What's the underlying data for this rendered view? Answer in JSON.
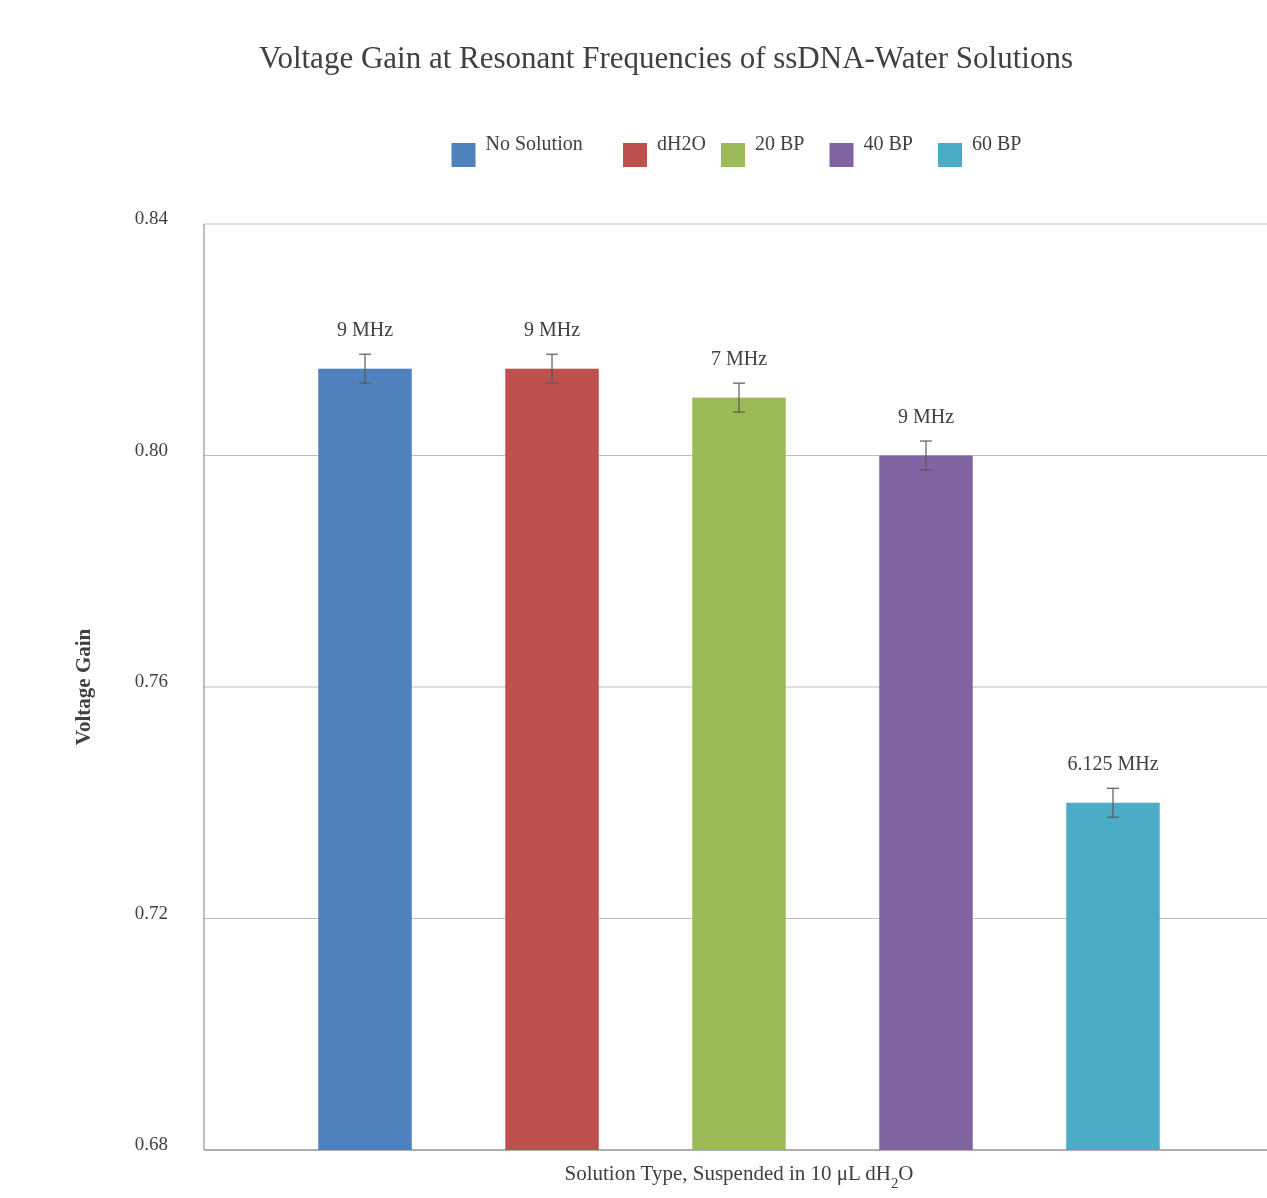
{
  "chart_data": {
    "type": "bar",
    "title": "Voltage Gain at Resonant Frequencies of ssDNA-Water Solutions",
    "xlabel": "Solution Type, Suspended in 10 μL dH$_{2}$O",
    "ylabel": "Voltage Gain",
    "categories": [
      null
    ],
    "series": [
      {
        "name": "No Solution",
        "color": "#4f81bd",
        "values": [
          0.815
        ],
        "errors": [
          0.0025
        ]
      },
      {
        "name": "dH2O",
        "color": "#c0504d",
        "values": [
          0.815
        ],
        "errors": [
          0.0025
        ]
      },
      {
        "name": "20 BP",
        "color": "#9bbb59",
        "values": [
          0.81
        ],
        "errors": [
          0.0025
        ]
      },
      {
        "name": "40 BP",
        "color": "#8064a2",
        "values": [
          0.8
        ],
        "errors": [
          0.0025
        ]
      },
      {
        "name": "60 BP",
        "color": "#4bacc6",
        "values": [
          0.74
        ],
        "errors": [
          0.0025
        ]
      }
    ],
    "annotations": [
      {
        "text": "9 MHz",
        "y": 0.8175
      },
      {
        "text": "9 MHz",
        "y": 0.8175
      },
      {
        "text": "7 MHz",
        "y": 0.8125
      },
      {
        "text": "9 MHz",
        "y": 0.8025
      },
      {
        "text": "6.125 MHz",
        "y": 0.7425
      }
    ],
    "ylim": [
      0.68,
      0.84
    ],
    "yticks": [
      {
        "value": 0.68,
        "label": "0.68"
      },
      {
        "value": 0.72,
        "label": "0.72"
      },
      {
        "value": 0.76,
        "label": "0.76"
      },
      {
        "value": 0.8,
        "label": "0.80"
      },
      {
        "value": 0.84,
        "label": "0.84"
      }
    ],
    "grid": "y",
    "legend": "top"
  }
}
